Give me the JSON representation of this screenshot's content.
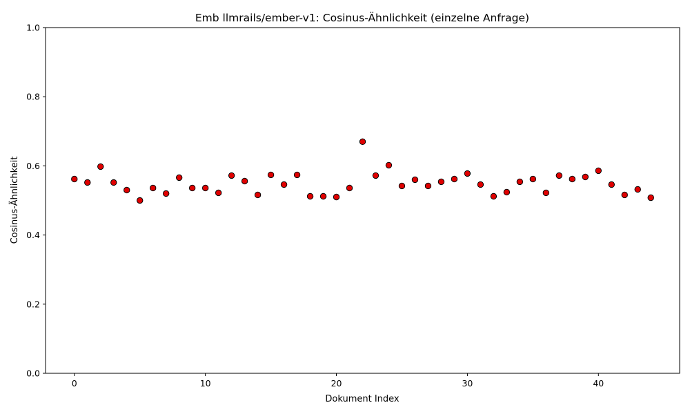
{
  "chart_data": {
    "type": "scatter",
    "title": "Emb llmrails/ember-v1: Cosinus-Ähnlichkeit (einzelne Anfrage)",
    "xlabel": "Dokument Index",
    "ylabel": "Cosinus-Ähnlichkeit",
    "xlim": [
      -2.2,
      46.2
    ],
    "ylim": [
      0,
      1
    ],
    "x_ticks": [
      0,
      10,
      20,
      30,
      40
    ],
    "y_ticks": [
      0.0,
      0.2,
      0.4,
      0.6,
      0.8,
      1.0
    ],
    "x_tick_labels": [
      "0",
      "10",
      "20",
      "30",
      "40"
    ],
    "y_tick_labels": [
      "0.0",
      "0.2",
      "0.4",
      "0.6",
      "0.8",
      "1.0"
    ],
    "grid": false,
    "marker_color": "#e00000",
    "marker_edge_color": "#000000",
    "x": [
      0,
      1,
      2,
      3,
      4,
      5,
      6,
      7,
      8,
      9,
      10,
      11,
      12,
      13,
      14,
      15,
      16,
      17,
      18,
      19,
      20,
      21,
      22,
      23,
      24,
      25,
      26,
      27,
      28,
      29,
      30,
      31,
      32,
      33,
      34,
      35,
      36,
      37,
      38,
      39,
      40,
      41,
      42,
      43,
      44
    ],
    "y": [
      0.562,
      0.552,
      0.598,
      0.552,
      0.53,
      0.5,
      0.536,
      0.52,
      0.566,
      0.536,
      0.536,
      0.522,
      0.572,
      0.556,
      0.516,
      0.574,
      0.546,
      0.574,
      0.512,
      0.512,
      0.51,
      0.536,
      0.67,
      0.572,
      0.602,
      0.542,
      0.56,
      0.542,
      0.554,
      0.562,
      0.578,
      0.546,
      0.512,
      0.524,
      0.554,
      0.562,
      0.522,
      0.572,
      0.562,
      0.568,
      0.586,
      0.546,
      0.516,
      0.532,
      0.508
    ]
  }
}
